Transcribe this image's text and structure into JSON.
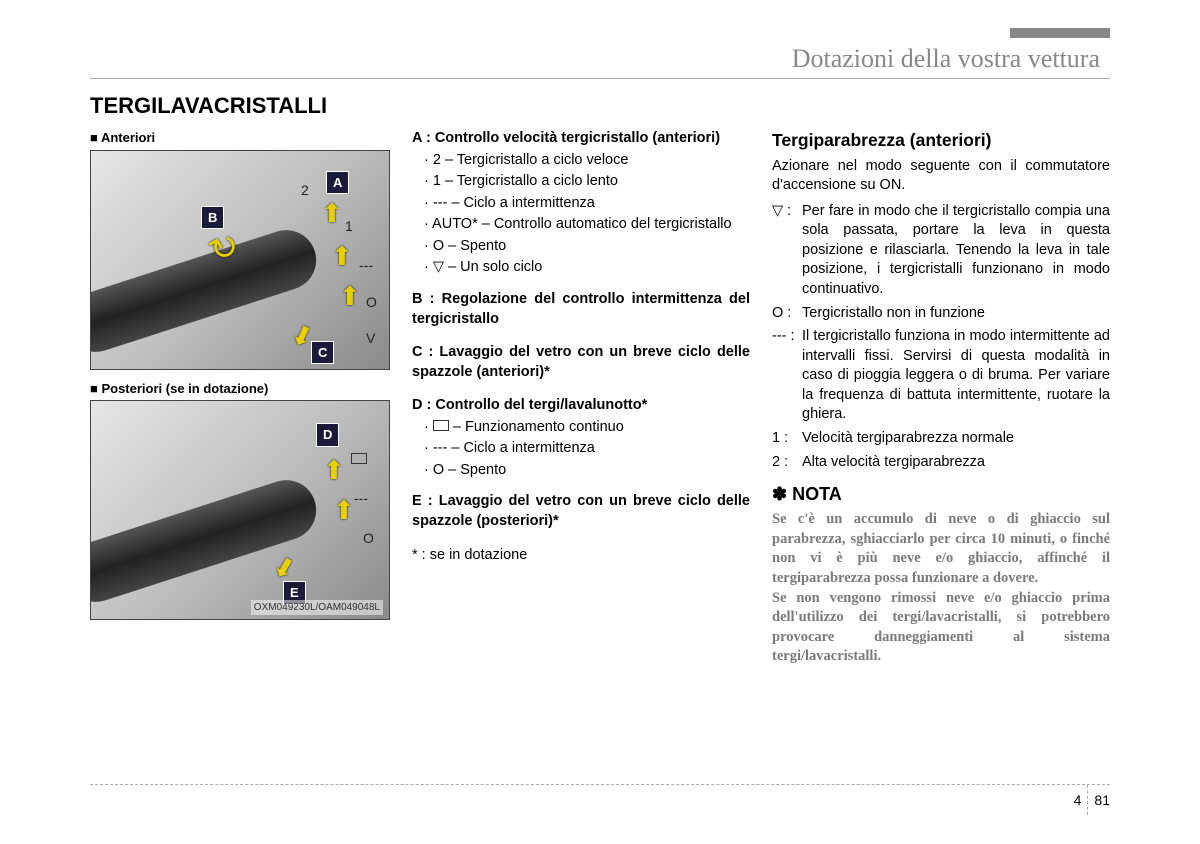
{
  "chapter_title": "Dotazioni della vostra vettura",
  "main_title": "TERGILAVACRISTALLI",
  "page_number_section": "4",
  "page_number_page": "81",
  "fig1": {
    "label": "■ Anteriori",
    "tags": {
      "A": "A",
      "B": "B",
      "C": "C"
    },
    "scales": {
      "two": "2",
      "one": "1",
      "dash": "---",
      "O": "O",
      "V": "V"
    }
  },
  "fig2": {
    "label": "■ Posteriori (se in dotazione)",
    "tags": {
      "D": "D",
      "E": "E"
    },
    "scales": {
      "dash": "---",
      "O": "O"
    },
    "code": "OXM049230L/OAM049048L"
  },
  "col2": {
    "A_head": "A : Controllo velocità tergicristallo (anteriori)",
    "A_items": [
      "· 2 – Tergicristallo a ciclo veloce",
      "· 1 – Tergicristallo a ciclo lento",
      "· --- – Ciclo a intermittenza",
      "· AUTO* – Controllo automatico del tergicristallo",
      "· O – Spento",
      "· ▽ – Un solo ciclo"
    ],
    "B_head": "B : Regolazione del controllo intermittenza del tergicristallo",
    "C_head": "C : Lavaggio del vetro con un breve ciclo delle spazzole (anteriori)*",
    "D_head": "D : Controllo del tergi/lavalunotto*",
    "D_items": [
      "– Funzionamento continuo",
      "· --- – Ciclo a intermittenza",
      "· O – Spento"
    ],
    "E_head": "E : Lavaggio del vetro con un breve ciclo delle spazzole (posteriori)*",
    "footnote": "* : se in dotazione"
  },
  "col3": {
    "subhead": "Tergiparabrezza (anteriori)",
    "intro": "Azionare nel modo seguente con il commutatore d'accensione su ON.",
    "defs": [
      {
        "k": "▽ :",
        "v": "Per fare in modo che il tergicristallo compia una sola passata, portare la leva in questa posizione e rilasciarla. Tenendo la leva in tale posizione, i tergicristalli funzionano in modo continuativo."
      },
      {
        "k": "O :",
        "v": "Tergicristallo non in funzione"
      },
      {
        "k": "--- :",
        "v": "Il tergicristallo funziona in modo intermittente ad intervalli fissi. Servirsi di questa modalità in caso di pioggia leggera o di bruma. Per variare la frequenza di battuta intermittente, ruotare la ghiera."
      },
      {
        "k": "1 :",
        "v": "Velocità tergiparabrezza normale"
      },
      {
        "k": "2 :",
        "v": "Alta velocità tergiparabrezza"
      }
    ],
    "nota_head": "✽ NOTA",
    "nota_body": "Se c'è un accumulo di neve o di ghiaccio sul parabrezza, sghiacciarlo per circa 10 minuti, o finché non vi è più neve e/o ghiaccio, affinché il tergiparabrezza possa funzionare a dovere.\nSe non vengono rimossi neve e/o ghiaccio prima dell'utilizzo dei tergi/lavacristalli, si potrebbero provocare danneggiamenti al sistema tergi/lavacristalli."
  }
}
